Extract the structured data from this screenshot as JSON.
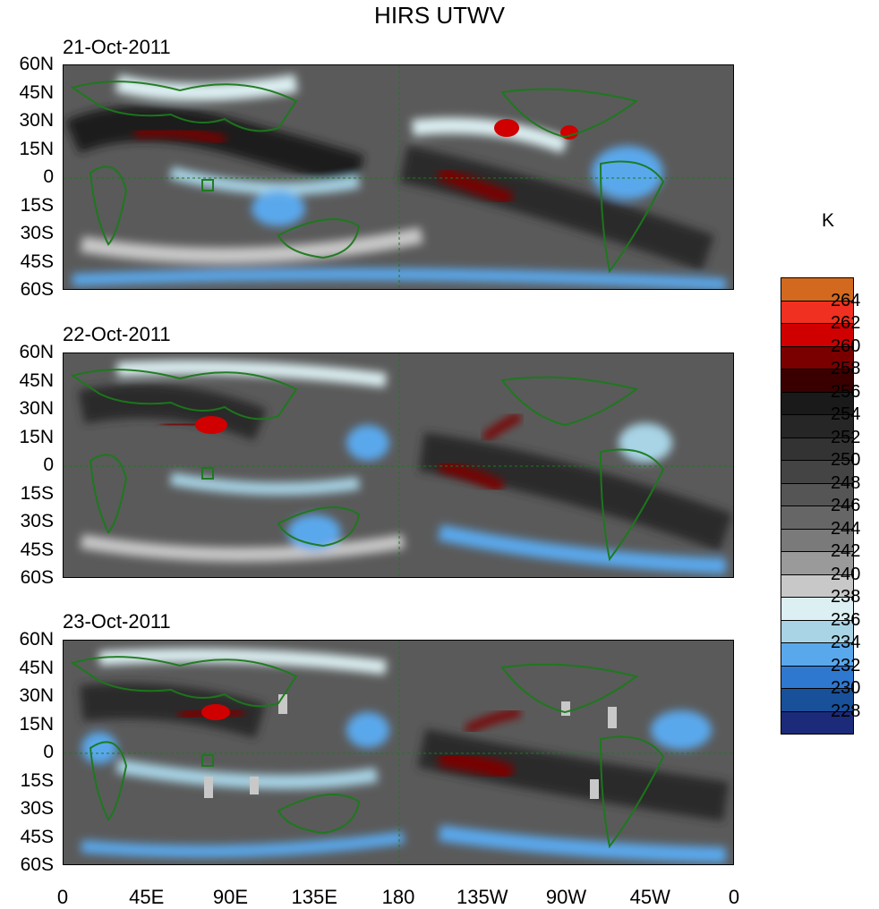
{
  "title": "HIRS UTWV",
  "panels": [
    {
      "date": "21-Oct-2011"
    },
    {
      "date": "22-Oct-2011"
    },
    {
      "date": "23-Oct-2011"
    }
  ],
  "lat_labels": [
    "60N",
    "45N",
    "30N",
    "15N",
    "0",
    "15S",
    "30S",
    "45S",
    "60S"
  ],
  "lon_labels": [
    "0",
    "45E",
    "90E",
    "135E",
    "180",
    "135W",
    "90W",
    "45W",
    "0"
  ],
  "colorbar": {
    "unit": "K",
    "levels": [
      "264",
      "262",
      "260",
      "258",
      "256",
      "254",
      "252",
      "250",
      "248",
      "246",
      "244",
      "242",
      "240",
      "238",
      "236",
      "234",
      "232",
      "230",
      "228"
    ],
    "colors": [
      "#d2691e",
      "#f03020",
      "#d00000",
      "#7a0000",
      "#3a0000",
      "#1a1a1a",
      "#262626",
      "#333333",
      "#444444",
      "#555555",
      "#666666",
      "#7a7a7a",
      "#9a9a9a",
      "#c8c8c8",
      "#dceff2",
      "#a8d4e6",
      "#5aa8ec",
      "#2f78d0",
      "#18509a",
      "#1c2a7a"
    ]
  }
}
